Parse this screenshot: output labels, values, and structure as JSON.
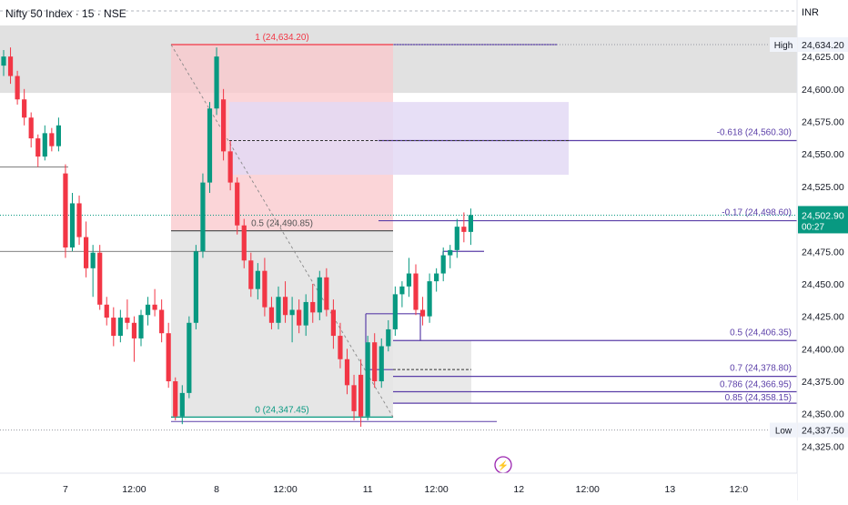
{
  "title": "Nifty 50 Index · 15 · NSE",
  "currency": "INR",
  "colors": {
    "up": "#089981",
    "down": "#f23645",
    "fib": "#5b3fa8",
    "fibText": "#5b3fa8",
    "bandGray": "#dcdcdc",
    "pinkZone": "#f9c7cb",
    "lavenderZone": "#e3d9f4",
    "priceTag": "#089981",
    "axisText": "#131722"
  },
  "chart_data": {
    "type": "candlestick",
    "y_ticks": [
      24625,
      24600,
      24575,
      24550,
      24525,
      24475,
      24450,
      24425,
      24400,
      24375,
      24350,
      24325
    ],
    "y_tick_labels": [
      "24,625.00",
      "24,600.00",
      "24,575.00",
      "24,550.00",
      "24,525.00",
      "24,475.00",
      "24,450.00",
      "24,425.00",
      "24,400.00",
      "24,375.00",
      "24,350.00",
      "24,325.00"
    ],
    "x_ticks": [
      {
        "label": "7",
        "bar": 9
      },
      {
        "label": "12:00",
        "bar": 19
      },
      {
        "label": "8",
        "bar": 31
      },
      {
        "label": "12:00",
        "bar": 41
      },
      {
        "label": "11",
        "bar": 53
      },
      {
        "label": "12:00",
        "bar": 63
      },
      {
        "label": "12",
        "bar": 75
      },
      {
        "label": "12:00",
        "bar": 85
      },
      {
        "label": "13",
        "bar": 97
      },
      {
        "label": "12:0",
        "bar": 107
      }
    ],
    "price_tags": [
      {
        "label": "High",
        "value": "24,634.20",
        "price": 24634.2
      },
      {
        "label": "Low",
        "value": "24,337.50",
        "price": 24337.5
      }
    ],
    "last_price": {
      "value": "24,502.90",
      "countdown": "00:27",
      "price": 24502.9
    },
    "fib_levels": [
      {
        "label": "1 (24,634.20)",
        "price": 24634.2
      },
      {
        "label": "0.5 (24,490.85)",
        "price": 24490.85
      },
      {
        "label": "0 (24,347.45)",
        "price": 24347.45
      },
      {
        "label": "-0.618 (24,560.30)",
        "price": 24560.3
      },
      {
        "label": "-0.17 (24,498.60)",
        "price": 24498.6
      },
      {
        "label": "0.5 (24,406.35)",
        "price": 24406.35
      },
      {
        "label": "0.7 (24,378.80)",
        "price": 24378.8
      },
      {
        "label": "0.786 (24,366.95)",
        "price": 24366.95
      },
      {
        "label": "0.85 (24,358.15)",
        "price": 24358.15
      }
    ],
    "candles": [
      [
        24618,
        24630,
        24610,
        24625
      ],
      [
        24625,
        24632,
        24604,
        24610
      ],
      [
        24610,
        24614,
        24588,
        24592
      ],
      [
        24592,
        24600,
        24572,
        24578
      ],
      [
        24578,
        24582,
        24555,
        24562
      ],
      [
        24562,
        24565,
        24540,
        24548
      ],
      [
        24548,
        24572,
        24545,
        24566
      ],
      [
        24566,
        24570,
        24552,
        24556
      ],
      [
        24556,
        24578,
        24552,
        24572
      ],
      [
        24535,
        24542,
        24470,
        24478
      ],
      [
        24478,
        24520,
        24475,
        24512
      ],
      [
        24512,
        24518,
        24480,
        24486
      ],
      [
        24486,
        24498,
        24455,
        24462
      ],
      [
        24462,
        24480,
        24440,
        24474
      ],
      [
        24474,
        24480,
        24430,
        24434
      ],
      [
        24434,
        24440,
        24418,
        24424
      ],
      [
        24424,
        24432,
        24402,
        24410
      ],
      [
        24410,
        24430,
        24405,
        24424
      ],
      [
        24424,
        24438,
        24415,
        24420
      ],
      [
        24420,
        24425,
        24390,
        24408
      ],
      [
        24408,
        24430,
        24402,
        24426
      ],
      [
        24426,
        24440,
        24418,
        24434
      ],
      [
        24434,
        24446,
        24425,
        24430
      ],
      [
        24430,
        24438,
        24405,
        24412
      ],
      [
        24412,
        24420,
        24370,
        24375
      ],
      [
        24375,
        24378,
        24345,
        24348
      ],
      [
        24348,
        24372,
        24342,
        24366
      ],
      [
        24366,
        24425,
        24362,
        24420
      ],
      [
        24420,
        24480,
        24415,
        24475
      ],
      [
        24475,
        24535,
        24470,
        24528
      ],
      [
        24528,
        24590,
        24520,
        24585
      ],
      [
        24585,
        24632,
        24580,
        24625
      ],
      [
        24592,
        24600,
        24545,
        24552
      ],
      [
        24552,
        24560,
        24522,
        24528
      ],
      [
        24528,
        24532,
        24488,
        24495
      ],
      [
        24495,
        24500,
        24462,
        24468
      ],
      [
        24468,
        24474,
        24440,
        24446
      ],
      [
        24446,
        24466,
        24438,
        24460
      ],
      [
        24460,
        24470,
        24425,
        24432
      ],
      [
        24432,
        24440,
        24415,
        24420
      ],
      [
        24420,
        24448,
        24415,
        24440
      ],
      [
        24440,
        24452,
        24420,
        24426
      ],
      [
        24426,
        24440,
        24405,
        24430
      ],
      [
        24430,
        24438,
        24412,
        24418
      ],
      [
        24418,
        24442,
        24410,
        24436
      ],
      [
        24436,
        24450,
        24420,
        24428
      ],
      [
        24428,
        24460,
        24422,
        24455
      ],
      [
        24455,
        24462,
        24425,
        24430
      ],
      [
        24430,
        24438,
        24400,
        24410
      ],
      [
        24410,
        24420,
        24385,
        24392
      ],
      [
        24392,
        24400,
        24365,
        24372
      ],
      [
        24372,
        24380,
        24345,
        24352
      ],
      [
        24380,
        24392,
        24340,
        24348
      ],
      [
        24348,
        24410,
        24345,
        24405
      ],
      [
        24405,
        24412,
        24370,
        24375
      ],
      [
        24375,
        24408,
        24370,
        24402
      ],
      [
        24402,
        24422,
        24398,
        24415
      ],
      [
        24415,
        24448,
        24410,
        24442
      ],
      [
        24442,
        24452,
        24432,
        24448
      ],
      [
        24448,
        24470,
        24440,
        24458
      ],
      [
        24458,
        24465,
        24426,
        24430
      ],
      [
        24430,
        24440,
        24418,
        24425
      ],
      [
        24425,
        24458,
        24420,
        24452
      ],
      [
        24452,
        24462,
        24444,
        24458
      ],
      [
        24458,
        24478,
        24452,
        24472
      ],
      [
        24472,
        24480,
        24462,
        24476
      ],
      [
        24476,
        24500,
        24470,
        24494
      ],
      [
        24494,
        24505,
        24482,
        24490
      ],
      [
        24490,
        24508,
        24480,
        24503
      ]
    ]
  },
  "watermark": "⚡"
}
